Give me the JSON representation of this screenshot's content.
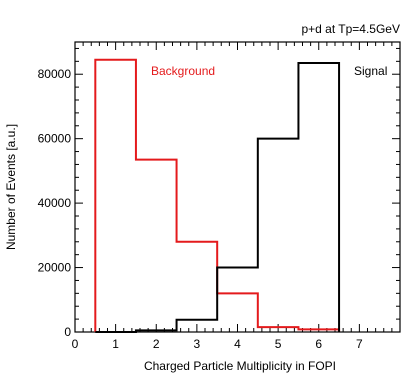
{
  "chart_data": {
    "type": "histogram",
    "title": "p+d at Tp=4.5GeV",
    "xlabel": "Charged Particle Multiplicity in FOPI",
    "ylabel": "Number of Events [a.u.]",
    "xlim": [
      0,
      8
    ],
    "ylim": [
      0,
      90000
    ],
    "x_ticks": [
      0,
      1,
      2,
      3,
      4,
      5,
      6,
      7
    ],
    "y_ticks": [
      0,
      20000,
      40000,
      60000,
      80000
    ],
    "grid": false,
    "bin_edges": [
      0.5,
      1.5,
      2.5,
      3.5,
      4.5,
      5.5,
      6.5
    ],
    "series": [
      {
        "name": "Background",
        "color": "#e41a1c",
        "label_placement": "top-left",
        "values": [
          84500,
          53500,
          28000,
          12000,
          1500,
          800
        ]
      },
      {
        "name": "Signal",
        "color": "#000000",
        "label_placement": "top-right",
        "values": [
          0,
          500,
          3800,
          20000,
          60000,
          83500
        ]
      }
    ]
  }
}
